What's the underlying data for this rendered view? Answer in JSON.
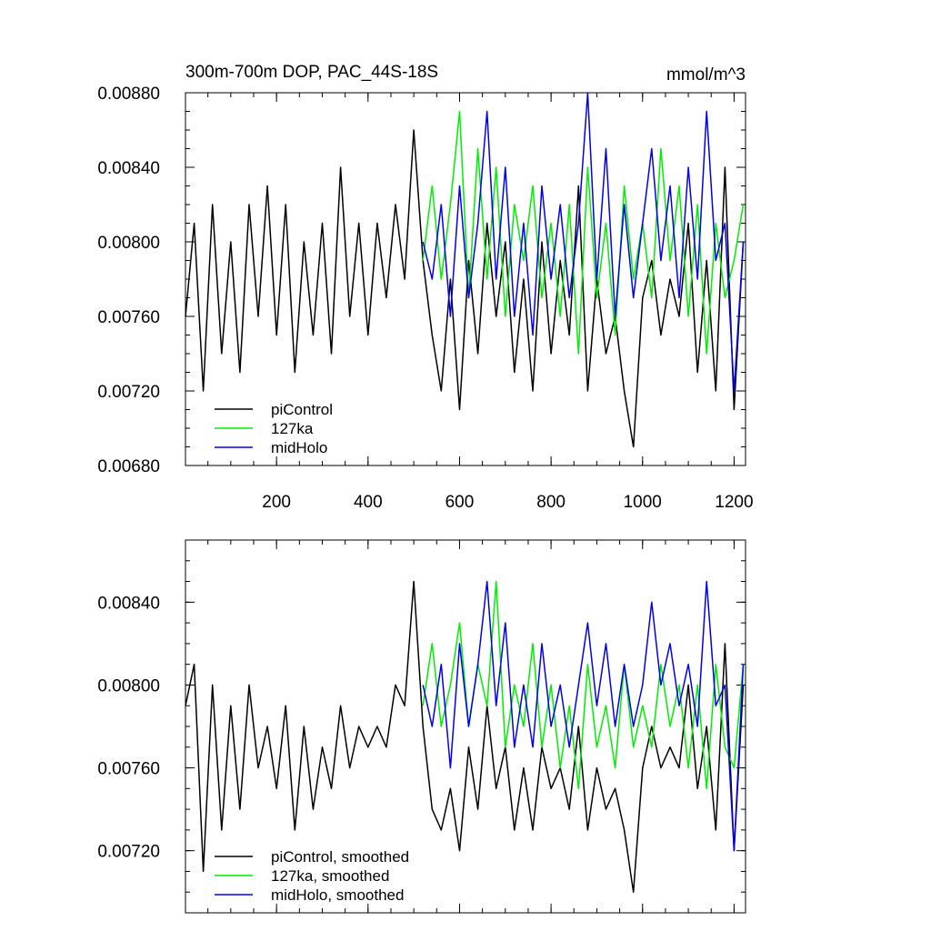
{
  "chart_data": [
    {
      "type": "line",
      "title": "300m-700m DOP, PAC_44S-18S",
      "units_label": "mmol/m^3",
      "xlabel": "",
      "ylabel": "",
      "xlim": [
        1,
        1225
      ],
      "ylim": [
        0.0068,
        0.0088
      ],
      "x_ticks": [
        200,
        400,
        600,
        800,
        1000,
        1200
      ],
      "x_tick_labels": [
        "200",
        "400",
        "600",
        "800",
        "1000",
        "1200"
      ],
      "y_ticks": [
        0.0068,
        0.0072,
        0.0076,
        0.008,
        0.0084,
        0.0088
      ],
      "y_tick_labels": [
        "0.00680",
        "0.00720",
        "0.00760",
        "0.00800",
        "0.00840",
        "0.00880"
      ],
      "grid": false,
      "legend_position": "bottom-left",
      "series": [
        {
          "name": "piControl",
          "color": "#000000",
          "x": [
            1,
            20,
            40,
            60,
            80,
            100,
            120,
            140,
            160,
            180,
            200,
            220,
            240,
            260,
            280,
            300,
            320,
            340,
            360,
            380,
            400,
            420,
            440,
            460,
            480,
            500,
            520,
            540,
            560,
            580,
            600,
            620,
            640,
            660,
            680,
            700,
            720,
            740,
            760,
            780,
            800,
            820,
            840,
            860,
            880,
            900,
            920,
            940,
            960,
            980,
            1000,
            1020,
            1040,
            1060,
            1080,
            1100,
            1120,
            1140,
            1160,
            1180,
            1200,
            1220
          ],
          "values": [
            0.0076,
            0.0081,
            0.0072,
            0.0082,
            0.0074,
            0.008,
            0.0073,
            0.0082,
            0.0076,
            0.0083,
            0.0075,
            0.0082,
            0.0073,
            0.008,
            0.0075,
            0.0081,
            0.0074,
            0.0084,
            0.0076,
            0.0081,
            0.0075,
            0.0081,
            0.0077,
            0.0082,
            0.0078,
            0.0086,
            0.0079,
            0.0075,
            0.0072,
            0.0078,
            0.0071,
            0.0079,
            0.0074,
            0.0081,
            0.0076,
            0.008,
            0.0073,
            0.0078,
            0.0072,
            0.008,
            0.0074,
            0.0079,
            0.0075,
            0.0083,
            0.0072,
            0.0078,
            0.0074,
            0.0076,
            0.0072,
            0.0069,
            0.0077,
            0.0079,
            0.0075,
            0.0078,
            0.0076,
            0.0081,
            0.0073,
            0.0079,
            0.0072,
            0.0084,
            0.0071,
            0.008
          ]
        },
        {
          "name": "127ka",
          "color": "#00ee00",
          "x": [
            520,
            540,
            560,
            580,
            600,
            620,
            640,
            660,
            680,
            700,
            720,
            740,
            760,
            780,
            800,
            820,
            840,
            860,
            880,
            900,
            920,
            940,
            960,
            980,
            1000,
            1020,
            1040,
            1060,
            1080,
            1100,
            1120,
            1140,
            1160,
            1180,
            1200,
            1220
          ],
          "values": [
            0.0079,
            0.0083,
            0.0078,
            0.0082,
            0.0087,
            0.0077,
            0.0085,
            0.0078,
            0.0084,
            0.0076,
            0.0082,
            0.0079,
            0.0083,
            0.0077,
            0.0081,
            0.0076,
            0.0082,
            0.0074,
            0.0084,
            0.0077,
            0.0081,
            0.0075,
            0.0083,
            0.0078,
            0.0081,
            0.0077,
            0.0085,
            0.0079,
            0.0083,
            0.0076,
            0.0082,
            0.0074,
            0.0081,
            0.0077,
            0.0079,
            0.0082
          ]
        },
        {
          "name": "midHolo",
          "color": "#0000ee",
          "x": [
            520,
            540,
            560,
            580,
            600,
            620,
            640,
            660,
            680,
            700,
            720,
            740,
            760,
            780,
            800,
            820,
            840,
            860,
            880,
            900,
            920,
            940,
            960,
            980,
            1000,
            1020,
            1040,
            1060,
            1080,
            1100,
            1120,
            1140,
            1160,
            1180,
            1200,
            1220
          ],
          "values": [
            0.008,
            0.0078,
            0.0082,
            0.0076,
            0.0083,
            0.0077,
            0.0081,
            0.0087,
            0.0078,
            0.0084,
            0.0076,
            0.0081,
            0.0075,
            0.0083,
            0.0078,
            0.0082,
            0.0077,
            0.0081,
            0.0088,
            0.0078,
            0.0085,
            0.0076,
            0.0082,
            0.0077,
            0.0081,
            0.0085,
            0.0079,
            0.0083,
            0.0077,
            0.0084,
            0.0078,
            0.0087,
            0.0079,
            0.0081,
            0.0072,
            0.008
          ]
        }
      ]
    },
    {
      "type": "line",
      "title": "",
      "xlabel": "",
      "ylabel": "",
      "xlim": [
        1,
        1225
      ],
      "ylim": [
        0.0069,
        0.0087
      ],
      "x_ticks": [
        200,
        400,
        600,
        800,
        1000,
        1200
      ],
      "y_ticks": [
        0.0072,
        0.0076,
        0.008,
        0.0084
      ],
      "y_tick_labels": [
        "0.00720",
        "0.00760",
        "0.00800",
        "0.00840"
      ],
      "grid": false,
      "legend_position": "bottom-left",
      "series": [
        {
          "name": "piControl, smoothed",
          "color": "#000000",
          "x": [
            1,
            20,
            40,
            60,
            80,
            100,
            120,
            140,
            160,
            180,
            200,
            220,
            240,
            260,
            280,
            300,
            320,
            340,
            360,
            380,
            400,
            420,
            440,
            460,
            480,
            500,
            520,
            540,
            560,
            580,
            600,
            620,
            640,
            660,
            680,
            700,
            720,
            740,
            760,
            780,
            800,
            820,
            840,
            860,
            880,
            900,
            920,
            940,
            960,
            980,
            1000,
            1020,
            1040,
            1060,
            1080,
            1100,
            1120,
            1140,
            1160,
            1180,
            1200,
            1220
          ],
          "values": [
            0.0079,
            0.0081,
            0.0071,
            0.008,
            0.0073,
            0.0079,
            0.0074,
            0.008,
            0.0076,
            0.0078,
            0.0075,
            0.0079,
            0.0073,
            0.0078,
            0.0074,
            0.0077,
            0.0075,
            0.0079,
            0.0076,
            0.0078,
            0.0077,
            0.0078,
            0.0077,
            0.008,
            0.0079,
            0.0085,
            0.0078,
            0.0074,
            0.0073,
            0.0075,
            0.0072,
            0.0077,
            0.0074,
            0.0079,
            0.0075,
            0.0077,
            0.0073,
            0.0076,
            0.0073,
            0.0077,
            0.0075,
            0.0076,
            0.0074,
            0.0078,
            0.0073,
            0.0076,
            0.0074,
            0.0075,
            0.0073,
            0.007,
            0.0076,
            0.0078,
            0.0076,
            0.0077,
            0.0076,
            0.008,
            0.0075,
            0.0078,
            0.0073,
            0.0082,
            0.0072,
            0.008
          ]
        },
        {
          "name": "127ka, smoothed",
          "color": "#00ee00",
          "x": [
            520,
            540,
            560,
            580,
            600,
            620,
            640,
            660,
            680,
            700,
            720,
            740,
            760,
            780,
            800,
            820,
            840,
            860,
            880,
            900,
            920,
            940,
            960,
            980,
            1000,
            1020,
            1040,
            1060,
            1080,
            1100,
            1120,
            1140,
            1160,
            1180,
            1200,
            1220
          ],
          "values": [
            0.0079,
            0.0082,
            0.0078,
            0.008,
            0.0083,
            0.0078,
            0.0081,
            0.0079,
            0.0085,
            0.0077,
            0.008,
            0.0078,
            0.0082,
            0.0077,
            0.008,
            0.0076,
            0.0079,
            0.0075,
            0.0081,
            0.0077,
            0.0079,
            0.0076,
            0.0081,
            0.0077,
            0.0079,
            0.0077,
            0.0081,
            0.0078,
            0.008,
            0.0076,
            0.008,
            0.0075,
            0.0081,
            0.0077,
            0.0076,
            0.0081
          ]
        },
        {
          "name": "midHolo, smoothed",
          "color": "#0000ee",
          "x": [
            520,
            540,
            560,
            580,
            600,
            620,
            640,
            660,
            680,
            700,
            720,
            740,
            760,
            780,
            800,
            820,
            840,
            860,
            880,
            900,
            920,
            940,
            960,
            980,
            1000,
            1020,
            1040,
            1060,
            1080,
            1100,
            1120,
            1140,
            1160,
            1180,
            1200,
            1220
          ],
          "values": [
            0.008,
            0.0078,
            0.0081,
            0.0076,
            0.0082,
            0.0078,
            0.0081,
            0.0085,
            0.0079,
            0.0083,
            0.0077,
            0.008,
            0.0077,
            0.0082,
            0.0078,
            0.008,
            0.0077,
            0.008,
            0.0083,
            0.0079,
            0.0082,
            0.0078,
            0.0081,
            0.0078,
            0.008,
            0.0084,
            0.008,
            0.0082,
            0.0079,
            0.0081,
            0.0078,
            0.0085,
            0.0079,
            0.008,
            0.0072,
            0.0081
          ]
        }
      ]
    }
  ]
}
